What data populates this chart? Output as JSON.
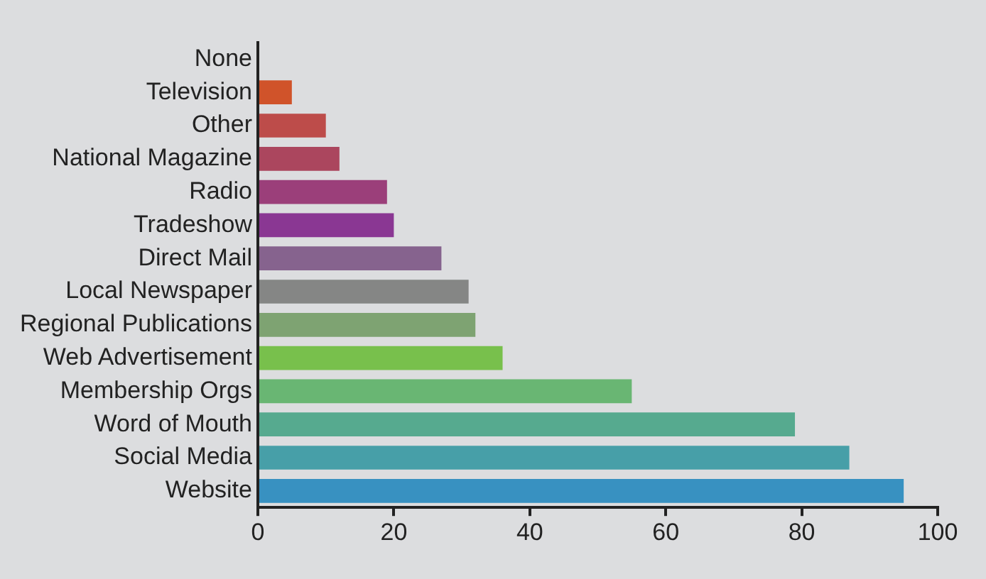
{
  "chart_data": {
    "type": "bar",
    "orientation": "horizontal",
    "categories": [
      "None",
      "Television",
      "Other",
      "National Magazine",
      "Radio",
      "Tradeshow",
      "Direct Mail",
      "Local Newspaper",
      "Regional Publications",
      "Web Advertisement",
      "Membership Orgs",
      "Word of Mouth",
      "Social Media",
      "Website"
    ],
    "values": [
      0,
      5,
      10,
      12,
      19,
      20,
      27,
      31,
      32,
      36,
      55,
      79,
      87,
      95
    ],
    "colors": [
      "#d0532a",
      "#d0532a",
      "#bd4c4a",
      "#ab465e",
      "#9b3f7a",
      "#8a3793",
      "#86638e",
      "#858685",
      "#7ea372",
      "#78c04c",
      "#69b673",
      "#56aa8f",
      "#479fa8",
      "#3891c1"
    ],
    "xlim": [
      0,
      100
    ],
    "xticks": [
      0,
      20,
      40,
      60,
      80,
      100
    ],
    "grid": false,
    "legend": false
  }
}
